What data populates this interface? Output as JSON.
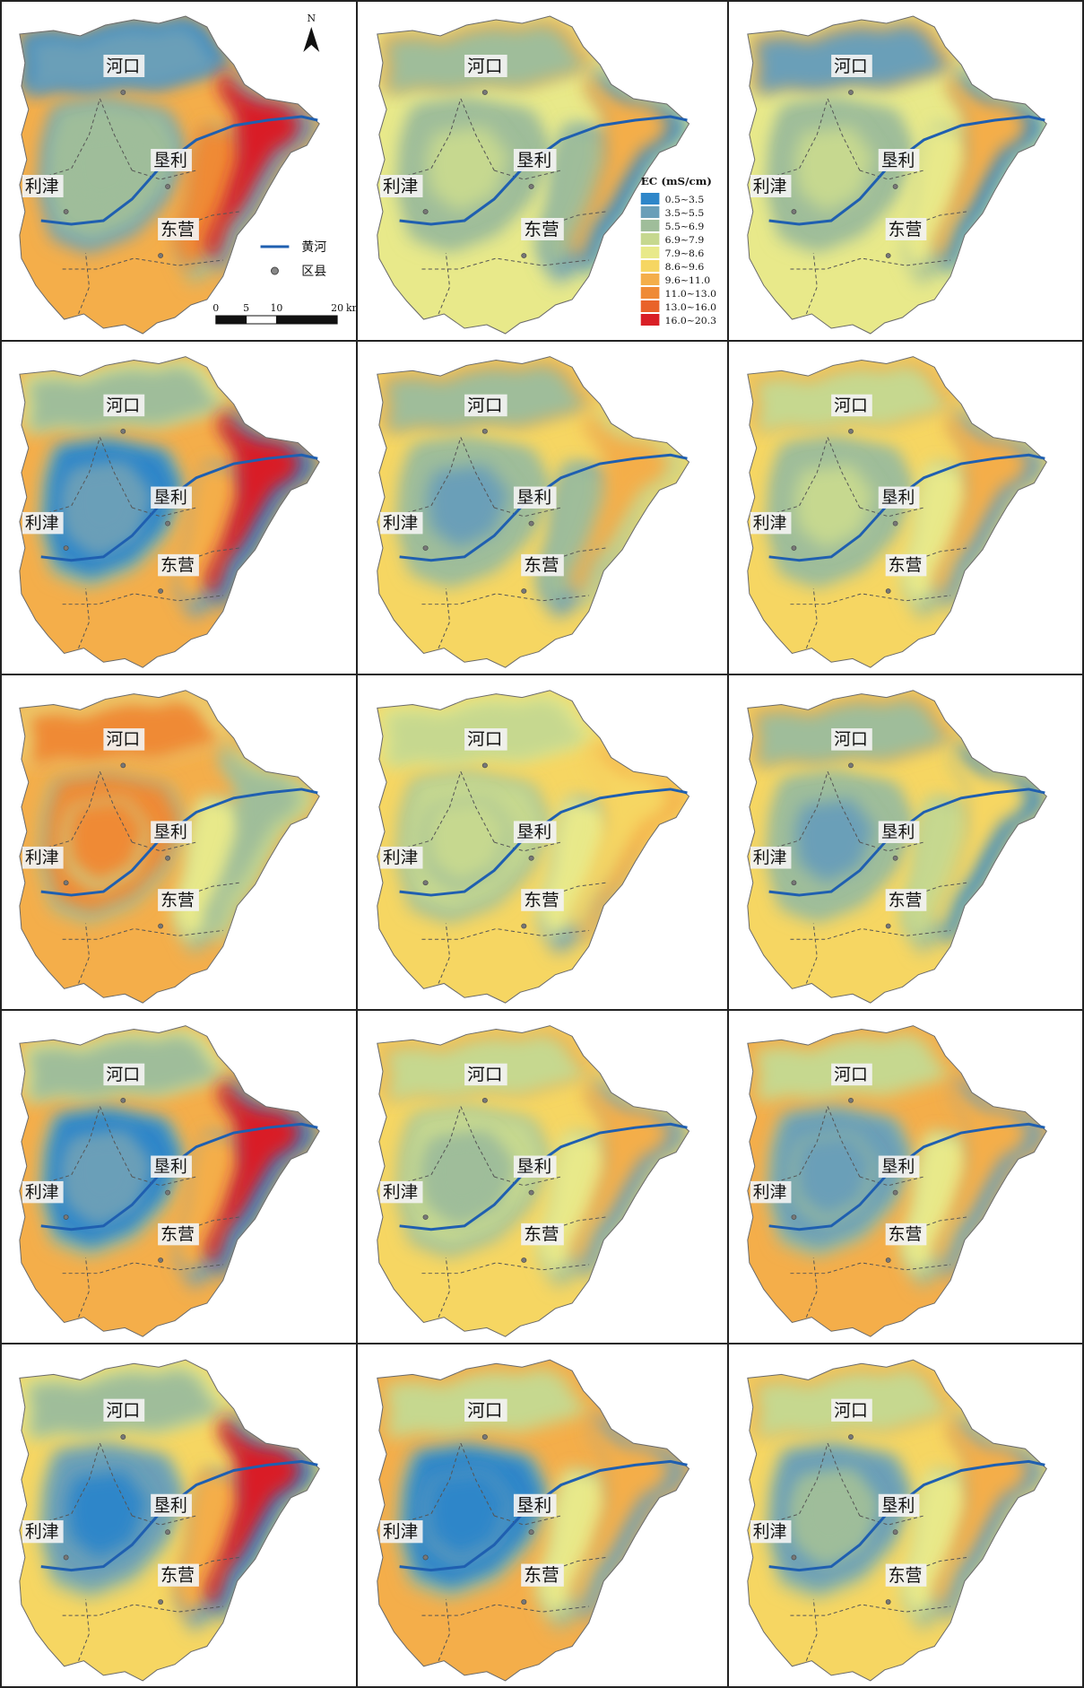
{
  "labels": {
    "hekou": "河口",
    "kenli": "垦利",
    "lijin": "利津",
    "dongying": "东营"
  },
  "north_label": "N",
  "legend": {
    "title": "EC (mS/cm)",
    "classes": [
      {
        "label": "0.5~3.5",
        "color": "#2e86c9"
      },
      {
        "label": "3.5~5.5",
        "color": "#6a9fb8"
      },
      {
        "label": "5.5~6.9",
        "color": "#9fbd9a"
      },
      {
        "label": "6.9~7.9",
        "color": "#c6d88f"
      },
      {
        "label": "7.9~8.6",
        "color": "#e8e98a"
      },
      {
        "label": "8.6~9.6",
        "color": "#f6d662"
      },
      {
        "label": "9.6~11.0",
        "color": "#f4ae4a"
      },
      {
        "label": "11.0~13.0",
        "color": "#ef8a36"
      },
      {
        "label": "13.0~16.0",
        "color": "#e9622a"
      },
      {
        "label": "16.0~20.3",
        "color": "#d91f26"
      }
    ]
  },
  "map_legend": {
    "river_label": "黄河",
    "county_label": "区县",
    "river_color": "#1f5fb0"
  },
  "scale_bar": {
    "ticks": [
      "0",
      "5",
      "10",
      "20"
    ],
    "unit": "km"
  },
  "panels": [
    {
      "bg": 6,
      "zones": [
        [
          0,
          0,
          1
        ],
        [
          1,
          1,
          2
        ],
        [
          2,
          2,
          2
        ],
        [
          3,
          2,
          7
        ],
        [
          4,
          1,
          9
        ]
      ]
    },
    {
      "bg": 4,
      "zones": [
        [
          0,
          6,
          2
        ],
        [
          1,
          2,
          2
        ],
        [
          2,
          2,
          3
        ],
        [
          3,
          1,
          2
        ],
        [
          4,
          0,
          6
        ]
      ]
    },
    {
      "bg": 4,
      "zones": [
        [
          0,
          6,
          1
        ],
        [
          1,
          2,
          2
        ],
        [
          2,
          2,
          3
        ],
        [
          3,
          2,
          4
        ],
        [
          4,
          0,
          6
        ]
      ]
    },
    {
      "bg": 6,
      "zones": [
        [
          0,
          4,
          2
        ],
        [
          1,
          2,
          0
        ],
        [
          2,
          1,
          1
        ],
        [
          3,
          1,
          6
        ],
        [
          4,
          0,
          9
        ]
      ]
    },
    {
      "bg": 5,
      "zones": [
        [
          0,
          6,
          2
        ],
        [
          1,
          2,
          2
        ],
        [
          2,
          2,
          1
        ],
        [
          3,
          1,
          2
        ],
        [
          4,
          3,
          6
        ]
      ]
    },
    {
      "bg": 5,
      "zones": [
        [
          0,
          6,
          3
        ],
        [
          1,
          2,
          2
        ],
        [
          2,
          2,
          3
        ],
        [
          3,
          2,
          4
        ],
        [
          4,
          1,
          6
        ]
      ]
    },
    {
      "bg": 6,
      "zones": [
        [
          0,
          4,
          7
        ],
        [
          1,
          2,
          7
        ],
        [
          2,
          3,
          7
        ],
        [
          3,
          2,
          4
        ],
        [
          4,
          3,
          2
        ]
      ]
    },
    {
      "bg": 5,
      "zones": [
        [
          0,
          4,
          3
        ],
        [
          1,
          2,
          3
        ],
        [
          2,
          2,
          3
        ],
        [
          3,
          1,
          4
        ],
        [
          4,
          6,
          5
        ]
      ]
    },
    {
      "bg": 5,
      "zones": [
        [
          0,
          6,
          2
        ],
        [
          1,
          2,
          2
        ],
        [
          2,
          2,
          1
        ],
        [
          3,
          2,
          3
        ],
        [
          4,
          0,
          5
        ]
      ]
    },
    {
      "bg": 6,
      "zones": [
        [
          0,
          4,
          2
        ],
        [
          1,
          2,
          0
        ],
        [
          2,
          1,
          1
        ],
        [
          3,
          1,
          6
        ],
        [
          4,
          0,
          9
        ]
      ]
    },
    {
      "bg": 5,
      "zones": [
        [
          0,
          6,
          3
        ],
        [
          1,
          2,
          3
        ],
        [
          2,
          2,
          2
        ],
        [
          3,
          2,
          4
        ],
        [
          4,
          1,
          6
        ]
      ]
    },
    {
      "bg": 6,
      "zones": [
        [
          0,
          6,
          3
        ],
        [
          1,
          2,
          1
        ],
        [
          2,
          2,
          1
        ],
        [
          3,
          2,
          4
        ],
        [
          4,
          1,
          6
        ]
      ]
    },
    {
      "bg": 5,
      "zones": [
        [
          0,
          4,
          2
        ],
        [
          1,
          2,
          1
        ],
        [
          2,
          1,
          0
        ],
        [
          3,
          1,
          6
        ],
        [
          4,
          0,
          9
        ]
      ]
    },
    {
      "bg": 6,
      "zones": [
        [
          0,
          6,
          3
        ],
        [
          1,
          2,
          0
        ],
        [
          2,
          1,
          0
        ],
        [
          3,
          2,
          4
        ],
        [
          4,
          1,
          6
        ]
      ]
    },
    {
      "bg": 5,
      "zones": [
        [
          0,
          6,
          3
        ],
        [
          1,
          2,
          1
        ],
        [
          2,
          2,
          2
        ],
        [
          3,
          2,
          4
        ],
        [
          4,
          1,
          6
        ]
      ]
    }
  ]
}
